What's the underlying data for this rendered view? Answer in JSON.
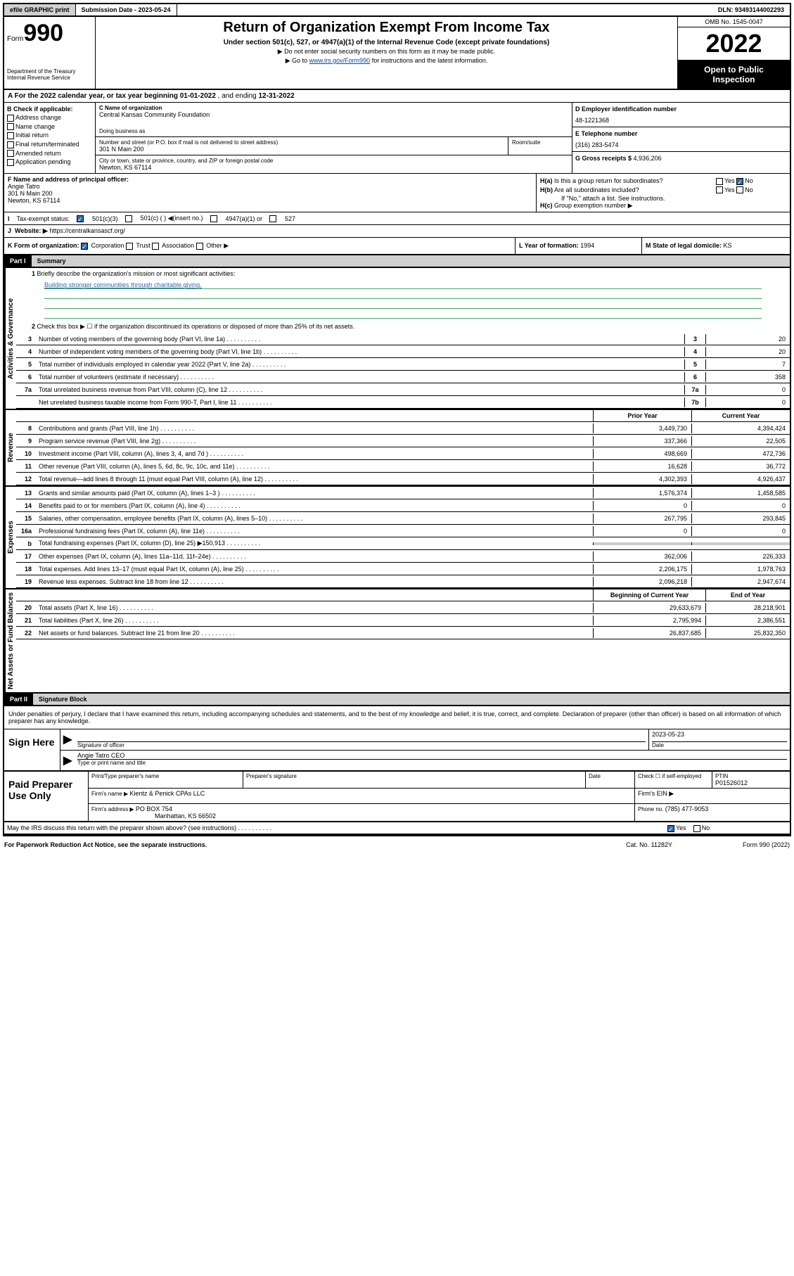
{
  "topbar": {
    "efile": "efile GRAPHIC print",
    "submission": "Submission Date - 2023-05-24",
    "dln": "DLN: 93493144002293"
  },
  "header": {
    "form_label": "Form",
    "form_no": "990",
    "dept": "Department of the Treasury Internal Revenue Service",
    "title": "Return of Organization Exempt From Income Tax",
    "subtitle": "Under section 501(c), 527, or 4947(a)(1) of the Internal Revenue Code (except private foundations)",
    "instr1": "▶ Do not enter social security numbers on this form as it may be made public.",
    "instr2_pre": "▶ Go to ",
    "instr2_link": "www.irs.gov/Form990",
    "instr2_post": " for instructions and the latest information.",
    "omb": "OMB No. 1545-0047",
    "year": "2022",
    "open_public": "Open to Public Inspection"
  },
  "row_a": {
    "label": "A For the 2022 calendar year, or tax year beginning ",
    "begin": "01-01-2022",
    "mid": "   , and ending ",
    "end": "12-31-2022"
  },
  "section_b": {
    "hdr": "B Check if applicable:",
    "opts": [
      "Address change",
      "Name change",
      "Initial return",
      "Final return/terminated",
      "Amended return",
      "Application pending"
    ]
  },
  "section_c": {
    "name_lbl": "C Name of organization",
    "name": "Central Kansas Community Foundation",
    "dba_lbl": "Doing business as",
    "addr_lbl": "Number and street (or P.O. box if mail is not delivered to street address)",
    "room_lbl": "Room/suite",
    "addr": "301 N Main 200",
    "city_lbl": "City or town, state or province, country, and ZIP or foreign postal code",
    "city": "Newton, KS  67114"
  },
  "section_d": {
    "ein_lbl": "D Employer identification number",
    "ein": "48-1221368",
    "tel_lbl": "E Telephone number",
    "tel": "(316) 283-5474",
    "gross_lbl": "G Gross receipts $ ",
    "gross": "4,936,206"
  },
  "section_f": {
    "lbl": "F Name and address of principal officer:",
    "name": "Angie Tatro",
    "addr1": "301 N Main 200",
    "addr2": "Newton, KS  67114"
  },
  "section_h": {
    "ha": "Is this a group return for subordinates?",
    "hb": "Are all subordinates included?",
    "hb_note": "If \"No,\" attach a list. See instructions.",
    "hc": "Group exemption number ▶",
    "yes": "Yes",
    "no": "No"
  },
  "row_i": {
    "lbl": "Tax-exempt status:",
    "o1": "501(c)(3)",
    "o2": "501(c) (   ) ◀(insert no.)",
    "o3": "4947(a)(1) or",
    "o4": "527"
  },
  "row_j": {
    "lbl": "Website: ▶",
    "val": "https://centralkansascf.org/"
  },
  "row_k": {
    "lbl": "K Form of organization:",
    "o1": "Corporation",
    "o2": "Trust",
    "o3": "Association",
    "o4": "Other ▶",
    "l_lbl": "L Year of formation: ",
    "l_val": "1994",
    "m_lbl": "M State of legal domicile: ",
    "m_val": "KS"
  },
  "part1": {
    "hdr": "Part I",
    "title": "Summary",
    "q1_lbl": "Briefly describe the organization's mission or most significant activities:",
    "q1_val": "Building stronger communities through charitable giving.",
    "q2": "Check this box ▶ ☐  if the organization discontinued its operations or disposed of more than 25% of its net assets.",
    "tabs": {
      "ag": "Activities & Governance",
      "rev": "Revenue",
      "exp": "Expenses",
      "na": "Net Assets or Fund Balances"
    },
    "lines": [
      {
        "n": "3",
        "t": "Number of voting members of the governing body (Part VI, line 1a)",
        "box": "3",
        "v": "20"
      },
      {
        "n": "4",
        "t": "Number of independent voting members of the governing body (Part VI, line 1b)",
        "box": "4",
        "v": "20"
      },
      {
        "n": "5",
        "t": "Total number of individuals employed in calendar year 2022 (Part V, line 2a)",
        "box": "5",
        "v": "7"
      },
      {
        "n": "6",
        "t": "Total number of volunteers (estimate if necessary)",
        "box": "6",
        "v": "358"
      },
      {
        "n": "7a",
        "t": "Total unrelated business revenue from Part VIII, column (C), line 12",
        "box": "7a",
        "v": "0"
      },
      {
        "n": "",
        "t": "Net unrelated business taxable income from Form 990-T, Part I, line 11",
        "box": "7b",
        "v": "0"
      }
    ],
    "col_hdr_prior": "Prior Year",
    "col_hdr_curr": "Current Year",
    "revenue": [
      {
        "n": "8",
        "t": "Contributions and grants (Part VIII, line 1h)",
        "p": "3,449,730",
        "c": "4,394,424"
      },
      {
        "n": "9",
        "t": "Program service revenue (Part VIII, line 2g)",
        "p": "337,366",
        "c": "22,505"
      },
      {
        "n": "10",
        "t": "Investment income (Part VIII, column (A), lines 3, 4, and 7d )",
        "p": "498,669",
        "c": "472,736"
      },
      {
        "n": "11",
        "t": "Other revenue (Part VIII, column (A), lines 5, 6d, 8c, 9c, 10c, and 11e)",
        "p": "16,628",
        "c": "36,772"
      },
      {
        "n": "12",
        "t": "Total revenue—add lines 8 through 11 (must equal Part VIII, column (A), line 12)",
        "p": "4,302,393",
        "c": "4,926,437"
      }
    ],
    "expenses": [
      {
        "n": "13",
        "t": "Grants and similar amounts paid (Part IX, column (A), lines 1–3 )",
        "p": "1,576,374",
        "c": "1,458,585"
      },
      {
        "n": "14",
        "t": "Benefits paid to or for members (Part IX, column (A), line 4)",
        "p": "0",
        "c": "0"
      },
      {
        "n": "15",
        "t": "Salaries, other compensation, employee benefits (Part IX, column (A), lines 5–10)",
        "p": "267,795",
        "c": "293,845"
      },
      {
        "n": "16a",
        "t": "Professional fundraising fees (Part IX, column (A), line 11e)",
        "p": "0",
        "c": "0"
      },
      {
        "n": "b",
        "t": "Total fundraising expenses (Part IX, column (D), line 25) ▶150,913",
        "p": "",
        "c": ""
      },
      {
        "n": "17",
        "t": "Other expenses (Part IX, column (A), lines 11a–11d, 11f–24e)",
        "p": "362,006",
        "c": "226,333"
      },
      {
        "n": "18",
        "t": "Total expenses. Add lines 13–17 (must equal Part IX, column (A), line 25)",
        "p": "2,206,175",
        "c": "1,978,763"
      },
      {
        "n": "19",
        "t": "Revenue less expenses. Subtract line 18 from line 12",
        "p": "2,096,218",
        "c": "2,947,674"
      }
    ],
    "col_hdr_begin": "Beginning of Current Year",
    "col_hdr_end": "End of Year",
    "netassets": [
      {
        "n": "20",
        "t": "Total assets (Part X, line 16)",
        "p": "29,633,679",
        "c": "28,218,901"
      },
      {
        "n": "21",
        "t": "Total liabilities (Part X, line 26)",
        "p": "2,795,994",
        "c": "2,386,551"
      },
      {
        "n": "22",
        "t": "Net assets or fund balances. Subtract line 21 from line 20",
        "p": "26,837,685",
        "c": "25,832,350"
      }
    ]
  },
  "part2": {
    "hdr": "Part II",
    "title": "Signature Block",
    "decl": "Under penalties of perjury, I declare that I have examined this return, including accompanying schedules and statements, and to the best of my knowledge and belief, it is true, correct, and complete. Declaration of preparer (other than officer) is based on all information of which preparer has any knowledge.",
    "sign_here": "Sign Here",
    "sig_officer_lbl": "Signature of officer",
    "sig_date": "2023-05-23",
    "date_lbl": "Date",
    "officer_name": "Angie Tatro CEO",
    "officer_type_lbl": "Type or print name and title",
    "paid_prep": "Paid Preparer Use Only",
    "prep_name_lbl": "Print/Type preparer's name",
    "prep_sig_lbl": "Preparer's signature",
    "prep_date_lbl": "Date",
    "prep_check_lbl": "Check ☐ if self-employed",
    "ptin_lbl": "PTIN",
    "ptin": "P01526012",
    "firm_name_lbl": "Firm's name    ▶ ",
    "firm_name": "Kientz & Penick CPAs LLC",
    "firm_ein_lbl": "Firm's EIN ▶",
    "firm_addr_lbl": "Firm's address ▶ ",
    "firm_addr1": "PO BOX 754",
    "firm_addr2": "Manhattan, KS  66502",
    "firm_phone_lbl": "Phone no. ",
    "firm_phone": "(785) 477-9053",
    "may_irs": "May the IRS discuss this return with the preparer shown above? (see instructions)",
    "yes": "Yes",
    "no": "No"
  },
  "footer": {
    "l": "For Paperwork Reduction Act Notice, see the separate instructions.",
    "c": "Cat. No. 11282Y",
    "r": "Form 990 (2022)"
  }
}
